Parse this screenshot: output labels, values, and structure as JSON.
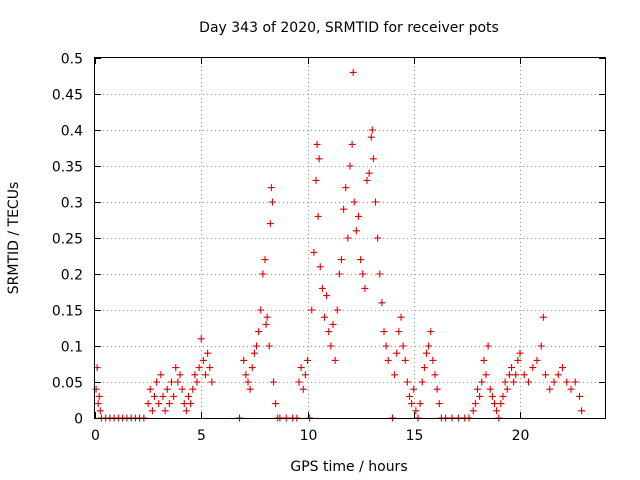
{
  "chart_data": {
    "type": "scatter",
    "title": "Day 343 of 2020, SRMTID for receiver pots",
    "xlabel": "GPS time / hours",
    "ylabel": "SRMTID / TECUs",
    "xlim": [
      0,
      24
    ],
    "ylim": [
      0,
      0.5
    ],
    "grid": true,
    "marker": "+",
    "color": "#e00000",
    "x_ticks": [
      0,
      5,
      10,
      15,
      20
    ],
    "x_tick_labels": [
      "0",
      "5",
      "10",
      "15",
      "20"
    ],
    "y_ticks": [
      0,
      0.05,
      0.1,
      0.15,
      0.2,
      0.25,
      0.3,
      0.35,
      0.4,
      0.45,
      0.5
    ],
    "y_tick_labels": [
      "0",
      "0.05",
      "0.1",
      "0.15",
      "0.2",
      "0.25",
      "0.3",
      "0.35",
      "0.4",
      "0.45",
      "0.5"
    ],
    "series": [
      {
        "name": "SRMTID",
        "points": [
          [
            0.05,
            0.04
          ],
          [
            0.1,
            0.07
          ],
          [
            0.15,
            0.02
          ],
          [
            0.2,
            0.03
          ],
          [
            0.25,
            0.01
          ],
          [
            0.3,
            0.0
          ],
          [
            0.5,
            0.0
          ],
          [
            0.7,
            0.0
          ],
          [
            0.9,
            0.0
          ],
          [
            1.1,
            0.0
          ],
          [
            1.3,
            0.0
          ],
          [
            1.5,
            0.0
          ],
          [
            1.7,
            0.0
          ],
          [
            1.9,
            0.0
          ],
          [
            2.1,
            0.0
          ],
          [
            2.3,
            0.0
          ],
          [
            2.5,
            0.02
          ],
          [
            2.6,
            0.04
          ],
          [
            2.7,
            0.01
          ],
          [
            2.8,
            0.03
          ],
          [
            2.9,
            0.05
          ],
          [
            3.0,
            0.02
          ],
          [
            3.1,
            0.06
          ],
          [
            3.2,
            0.03
          ],
          [
            3.3,
            0.01
          ],
          [
            3.4,
            0.04
          ],
          [
            3.5,
            0.02
          ],
          [
            3.6,
            0.05
          ],
          [
            3.7,
            0.03
          ],
          [
            3.8,
            0.07
          ],
          [
            3.9,
            0.05
          ],
          [
            4.0,
            0.06
          ],
          [
            4.1,
            0.04
          ],
          [
            4.2,
            0.02
          ],
          [
            4.3,
            0.01
          ],
          [
            4.4,
            0.03
          ],
          [
            4.5,
            0.02
          ],
          [
            4.6,
            0.04
          ],
          [
            4.7,
            0.06
          ],
          [
            4.8,
            0.05
          ],
          [
            4.9,
            0.07
          ],
          [
            5.0,
            0.11
          ],
          [
            5.1,
            0.08
          ],
          [
            5.2,
            0.06
          ],
          [
            5.3,
            0.09
          ],
          [
            5.4,
            0.07
          ],
          [
            5.5,
            0.05
          ],
          [
            6.8,
            0.0
          ],
          [
            7.0,
            0.08
          ],
          [
            7.1,
            0.06
          ],
          [
            7.2,
            0.05
          ],
          [
            7.3,
            0.04
          ],
          [
            7.4,
            0.07
          ],
          [
            7.5,
            0.09
          ],
          [
            7.6,
            0.1
          ],
          [
            7.7,
            0.12
          ],
          [
            7.8,
            0.15
          ],
          [
            7.9,
            0.2
          ],
          [
            8.0,
            0.22
          ],
          [
            8.05,
            0.13
          ],
          [
            8.1,
            0.14
          ],
          [
            8.2,
            0.1
          ],
          [
            8.25,
            0.27
          ],
          [
            8.3,
            0.32
          ],
          [
            8.35,
            0.3
          ],
          [
            8.4,
            0.05
          ],
          [
            8.5,
            0.02
          ],
          [
            8.6,
            0.0
          ],
          [
            8.7,
            0.0
          ],
          [
            9.0,
            0.0
          ],
          [
            9.3,
            0.0
          ],
          [
            9.5,
            0.0
          ],
          [
            9.6,
            0.05
          ],
          [
            9.7,
            0.07
          ],
          [
            9.8,
            0.04
          ],
          [
            9.9,
            0.06
          ],
          [
            10.0,
            0.08
          ],
          [
            10.1,
            0.0
          ],
          [
            10.2,
            0.15
          ],
          [
            10.3,
            0.23
          ],
          [
            10.4,
            0.33
          ],
          [
            10.45,
            0.38
          ],
          [
            10.5,
            0.28
          ],
          [
            10.55,
            0.36
          ],
          [
            10.6,
            0.21
          ],
          [
            10.7,
            0.18
          ],
          [
            10.8,
            0.14
          ],
          [
            10.9,
            0.17
          ],
          [
            11.0,
            0.12
          ],
          [
            11.1,
            0.1
          ],
          [
            11.2,
            0.13
          ],
          [
            11.3,
            0.08
          ],
          [
            11.4,
            0.15
          ],
          [
            11.5,
            0.2
          ],
          [
            11.6,
            0.22
          ],
          [
            11.7,
            0.29
          ],
          [
            11.8,
            0.32
          ],
          [
            11.9,
            0.25
          ],
          [
            12.0,
            0.35
          ],
          [
            12.1,
            0.38
          ],
          [
            12.15,
            0.48
          ],
          [
            12.2,
            0.3
          ],
          [
            12.3,
            0.26
          ],
          [
            12.4,
            0.28
          ],
          [
            12.5,
            0.22
          ],
          [
            12.6,
            0.2
          ],
          [
            12.7,
            0.18
          ],
          [
            12.8,
            0.33
          ],
          [
            12.9,
            0.34
          ],
          [
            13.0,
            0.39
          ],
          [
            13.05,
            0.4
          ],
          [
            13.1,
            0.36
          ],
          [
            13.2,
            0.3
          ],
          [
            13.3,
            0.25
          ],
          [
            13.4,
            0.2
          ],
          [
            13.5,
            0.16
          ],
          [
            13.6,
            0.12
          ],
          [
            13.7,
            0.1
          ],
          [
            13.8,
            0.08
          ],
          [
            14.0,
            0.0
          ],
          [
            14.1,
            0.06
          ],
          [
            14.2,
            0.09
          ],
          [
            14.3,
            0.12
          ],
          [
            14.4,
            0.14
          ],
          [
            14.5,
            0.1
          ],
          [
            14.6,
            0.08
          ],
          [
            14.7,
            0.05
          ],
          [
            14.8,
            0.03
          ],
          [
            14.9,
            0.02
          ],
          [
            15.0,
            0.04
          ],
          [
            15.1,
            0.01
          ],
          [
            15.2,
            0.0
          ],
          [
            15.3,
            0.02
          ],
          [
            15.4,
            0.05
          ],
          [
            15.5,
            0.07
          ],
          [
            15.6,
            0.09
          ],
          [
            15.7,
            0.1
          ],
          [
            15.8,
            0.12
          ],
          [
            15.9,
            0.08
          ],
          [
            16.0,
            0.06
          ],
          [
            16.1,
            0.04
          ],
          [
            16.2,
            0.02
          ],
          [
            16.3,
            0.0
          ],
          [
            16.5,
            0.0
          ],
          [
            16.8,
            0.0
          ],
          [
            17.1,
            0.0
          ],
          [
            17.4,
            0.0
          ],
          [
            17.6,
            0.0
          ],
          [
            17.8,
            0.01
          ],
          [
            17.9,
            0.02
          ],
          [
            18.0,
            0.04
          ],
          [
            18.1,
            0.03
          ],
          [
            18.2,
            0.05
          ],
          [
            18.3,
            0.08
          ],
          [
            18.4,
            0.06
          ],
          [
            18.5,
            0.1
          ],
          [
            18.6,
            0.04
          ],
          [
            18.7,
            0.03
          ],
          [
            18.8,
            0.02
          ],
          [
            18.9,
            0.01
          ],
          [
            19.0,
            0.0
          ],
          [
            19.1,
            0.02
          ],
          [
            19.2,
            0.03
          ],
          [
            19.3,
            0.05
          ],
          [
            19.4,
            0.04
          ],
          [
            19.5,
            0.06
          ],
          [
            19.6,
            0.07
          ],
          [
            19.7,
            0.05
          ],
          [
            19.8,
            0.06
          ],
          [
            19.9,
            0.08
          ],
          [
            20.0,
            0.09
          ],
          [
            20.2,
            0.06
          ],
          [
            20.4,
            0.05
          ],
          [
            20.6,
            0.07
          ],
          [
            20.8,
            0.08
          ],
          [
            21.0,
            0.1
          ],
          [
            21.1,
            0.14
          ],
          [
            21.2,
            0.06
          ],
          [
            21.4,
            0.04
          ],
          [
            21.6,
            0.05
          ],
          [
            21.8,
            0.06
          ],
          [
            22.0,
            0.07
          ],
          [
            22.2,
            0.05
          ],
          [
            22.4,
            0.04
          ],
          [
            22.6,
            0.05
          ],
          [
            22.8,
            0.03
          ],
          [
            22.9,
            0.01
          ]
        ]
      }
    ]
  }
}
